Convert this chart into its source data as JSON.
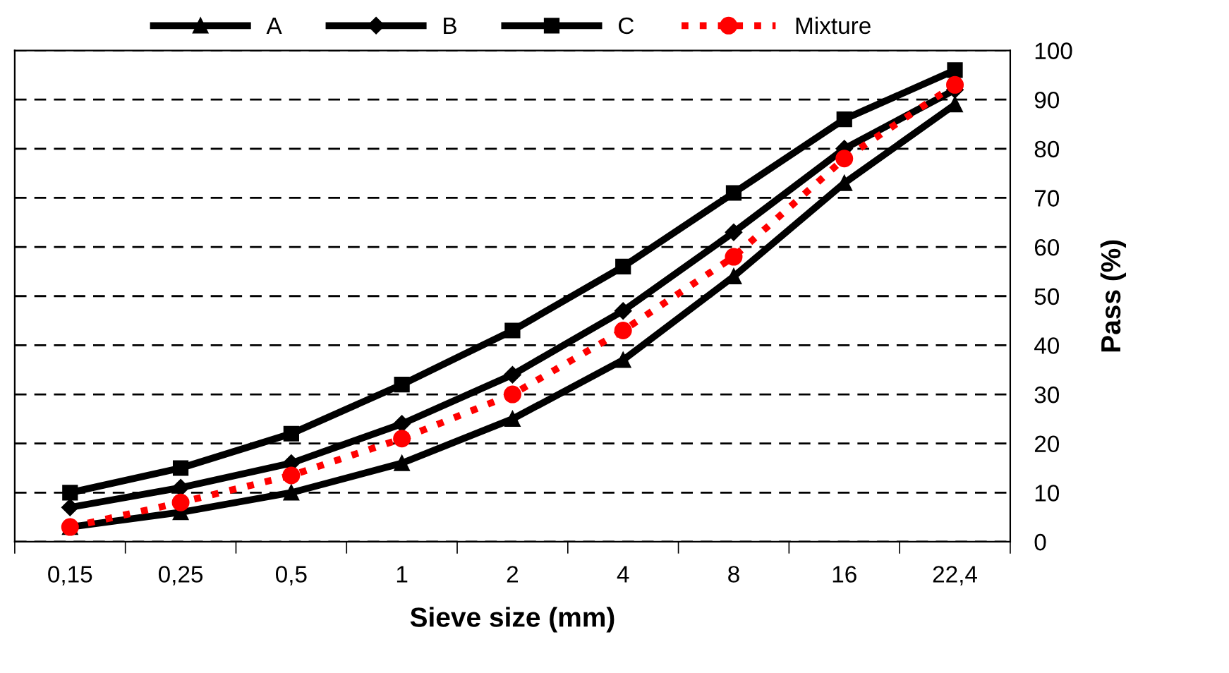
{
  "chart_data": {
    "type": "line",
    "xlabel": "Sieve size (mm)",
    "ylabel": "Pass (%)",
    "categories": [
      "0,15",
      "0,25",
      "0,5",
      "1",
      "2",
      "4",
      "8",
      "16",
      "22,4"
    ],
    "series": [
      {
        "name": "A",
        "color": "#000000",
        "marker": "triangle",
        "line_style": "solid",
        "values": [
          3,
          6,
          10,
          16,
          25,
          37,
          54,
          73,
          89
        ]
      },
      {
        "name": "B",
        "color": "#000000",
        "marker": "diamond",
        "line_style": "solid",
        "values": [
          7,
          11,
          16,
          24,
          34,
          47,
          63,
          80,
          92
        ]
      },
      {
        "name": "C",
        "color": "#000000",
        "marker": "square",
        "line_style": "solid",
        "values": [
          10,
          15,
          22,
          32,
          43,
          56,
          71,
          86,
          96
        ]
      },
      {
        "name": "Mixture",
        "color": "#ff0000",
        "marker": "circle",
        "line_style": "dotted",
        "values": [
          3,
          8,
          13.5,
          21,
          30,
          43,
          58,
          78,
          93
        ]
      }
    ],
    "ylim": [
      0,
      100
    ],
    "yticks": [
      0,
      10,
      20,
      30,
      40,
      50,
      60,
      70,
      80,
      90,
      100
    ],
    "grid": "y",
    "legend": "top"
  }
}
